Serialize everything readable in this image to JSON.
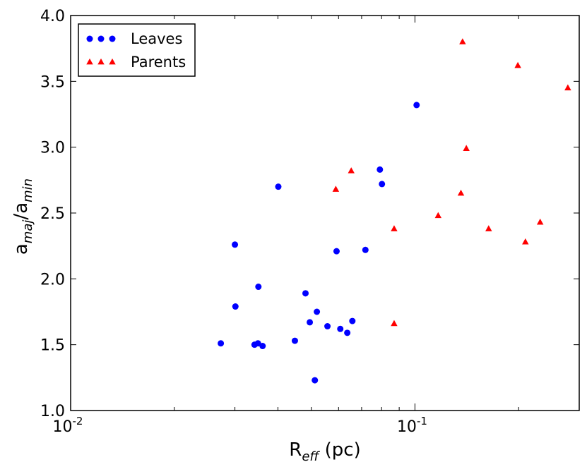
{
  "chart_data": {
    "type": "scatter",
    "title": "",
    "xlabel": "R<sub>eff</sub> (pc)",
    "xlabel_parts": {
      "main": "R",
      "sub": "eff",
      "rest": " (pc)"
    },
    "ylabel_parts": {
      "a1": "a",
      "sub1": "maj",
      "mid": "/a",
      "sub2": "min"
    },
    "x_scale": "log",
    "xlim": [
      0.01,
      0.3
    ],
    "ylim": [
      1.0,
      4.0
    ],
    "grid": false,
    "legend_position": "top-left",
    "x_ticks": [
      {
        "value": 0.01,
        "base": "10",
        "exp": "-2"
      },
      {
        "value": 0.1,
        "base": "10",
        "exp": "-1"
      }
    ],
    "y_ticks": [
      {
        "value": 1.0,
        "label": "1.0"
      },
      {
        "value": 1.5,
        "label": "1.5"
      },
      {
        "value": 2.0,
        "label": "2.0"
      },
      {
        "value": 2.5,
        "label": "2.5"
      },
      {
        "value": 3.0,
        "label": "3.0"
      },
      {
        "value": 3.5,
        "label": "3.5"
      },
      {
        "value": 4.0,
        "label": "4.0"
      }
    ],
    "series": [
      {
        "name": "Leaves",
        "marker": "circle",
        "color": "#0000ff",
        "points": [
          [
            0.0273,
            1.51
          ],
          [
            0.03,
            2.26
          ],
          [
            0.0301,
            1.79
          ],
          [
            0.0342,
            1.5
          ],
          [
            0.035,
            1.51
          ],
          [
            0.0351,
            1.94
          ],
          [
            0.0361,
            1.49
          ],
          [
            0.0401,
            2.7
          ],
          [
            0.0448,
            1.53
          ],
          [
            0.0481,
            1.89
          ],
          [
            0.0495,
            1.67
          ],
          [
            0.0512,
            1.23
          ],
          [
            0.0519,
            1.75
          ],
          [
            0.0557,
            1.64
          ],
          [
            0.0592,
            2.21
          ],
          [
            0.0607,
            1.62
          ],
          [
            0.0636,
            1.59
          ],
          [
            0.0658,
            1.68
          ],
          [
            0.0718,
            2.22
          ],
          [
            0.0791,
            2.83
          ],
          [
            0.0802,
            2.72
          ],
          [
            0.1011,
            3.32
          ]
        ]
      },
      {
        "name": "Parents",
        "marker": "triangle",
        "color": "#ff0000",
        "points": [
          [
            0.0589,
            2.68
          ],
          [
            0.0653,
            2.82
          ],
          [
            0.087,
            2.38
          ],
          [
            0.087,
            1.66
          ],
          [
            0.1168,
            2.48
          ],
          [
            0.136,
            2.65
          ],
          [
            0.1375,
            3.8
          ],
          [
            0.141,
            2.99
          ],
          [
            0.1637,
            2.38
          ],
          [
            0.199,
            3.62
          ],
          [
            0.2093,
            2.28
          ],
          [
            0.231,
            2.43
          ],
          [
            0.278,
            3.45
          ]
        ]
      }
    ]
  }
}
